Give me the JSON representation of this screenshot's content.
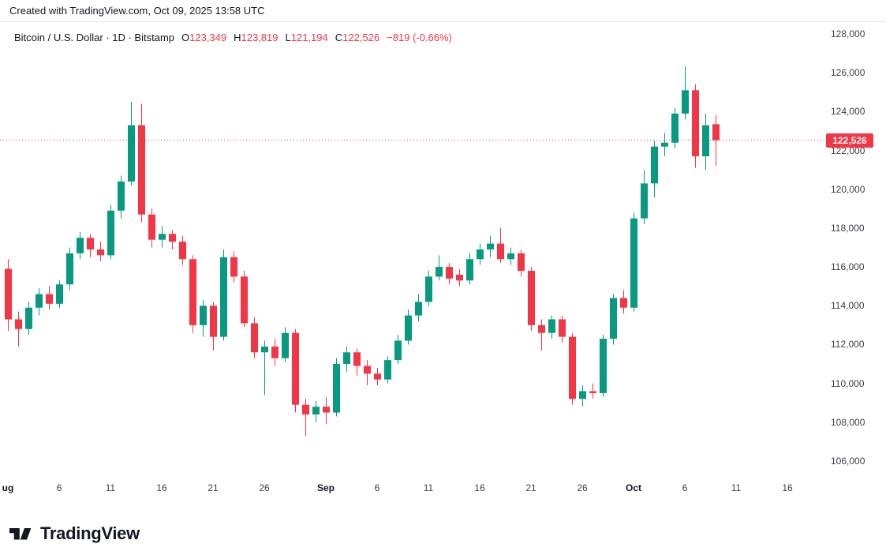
{
  "header": {
    "created_with": "Created with TradingView.com, Oct 09, 2025 13:58 UTC"
  },
  "legend": {
    "title": "Bitcoin / U.S. Dollar · 1D · Bitstamp",
    "open_label": "O",
    "open": "123,349",
    "high_label": "H",
    "high": "123,819",
    "low_label": "L",
    "low": "121,194",
    "close_label": "C",
    "close": "122,526",
    "change": "−819 (-0.66%)"
  },
  "footer": {
    "brand": "TradingView"
  },
  "chart_data": {
    "type": "candlestick",
    "title": "Bitcoin / U.S. Dollar · 1D · Bitstamp",
    "symbol": "Bitcoin / U.S. Dollar",
    "interval": "1D",
    "exchange": "Bitstamp",
    "grid": false,
    "legend_position": "top-left",
    "ylim": [
      105200,
      128600
    ],
    "current_price": 122526,
    "price_label": "122,526",
    "ohlc_last": {
      "open": 123349,
      "high": 123819,
      "low": 121194,
      "close": 122526,
      "change": -819,
      "change_pct": -0.66
    },
    "colors": {
      "up": "#089981",
      "down": "#f23645",
      "price_line": "#f23645",
      "tag_bg": "#f23645",
      "tag_text": "#ffffff"
    },
    "y_ticks": [
      128000,
      126000,
      124000,
      122000,
      120000,
      118000,
      116000,
      114000,
      112000,
      110000,
      108000,
      106000
    ],
    "x_ticks": [
      {
        "label": "ug",
        "day": 0,
        "bold": true
      },
      {
        "label": "6",
        "day": 5,
        "bold": false
      },
      {
        "label": "11",
        "day": 10,
        "bold": false
      },
      {
        "label": "16",
        "day": 15,
        "bold": false
      },
      {
        "label": "21",
        "day": 20,
        "bold": false
      },
      {
        "label": "26",
        "day": 25,
        "bold": false
      },
      {
        "label": "Sep",
        "day": 31,
        "bold": true
      },
      {
        "label": "6",
        "day": 36,
        "bold": false
      },
      {
        "label": "11",
        "day": 41,
        "bold": false
      },
      {
        "label": "16",
        "day": 46,
        "bold": false
      },
      {
        "label": "21",
        "day": 51,
        "bold": false
      },
      {
        "label": "26",
        "day": 56,
        "bold": false
      },
      {
        "label": "Oct",
        "day": 61,
        "bold": true
      },
      {
        "label": "6",
        "day": 66,
        "bold": false
      },
      {
        "label": "11",
        "day": 71,
        "bold": false
      },
      {
        "label": "16",
        "day": 76,
        "bold": false
      }
    ],
    "candles": [
      [
        "Aug 1",
        115900,
        116400,
        112700,
        113300
      ],
      [
        "Aug 2",
        113300,
        113700,
        111900,
        112800
      ],
      [
        "Aug 3",
        112800,
        114200,
        112500,
        113900
      ],
      [
        "Aug 4",
        113900,
        114900,
        113500,
        114600
      ],
      [
        "Aug 5",
        114600,
        115000,
        113800,
        114100
      ],
      [
        "Aug 6",
        114100,
        115300,
        113900,
        115100
      ],
      [
        "Aug 7",
        115100,
        117000,
        114800,
        116700
      ],
      [
        "Aug 8",
        116700,
        117800,
        116400,
        117500
      ],
      [
        "Aug 9",
        117500,
        117700,
        116500,
        116900
      ],
      [
        "Aug 10",
        116900,
        117300,
        116300,
        116600
      ],
      [
        "Aug 11",
        116600,
        119200,
        116400,
        118900
      ],
      [
        "Aug 12",
        118900,
        120700,
        118500,
        120400
      ],
      [
        "Aug 13",
        120400,
        124500,
        120200,
        123300
      ],
      [
        "Aug 14",
        123300,
        124400,
        118300,
        118700
      ],
      [
        "Aug 15",
        118700,
        119000,
        117000,
        117400
      ],
      [
        "Aug 16",
        117400,
        118100,
        117000,
        117700
      ],
      [
        "Aug 17",
        117700,
        117900,
        116900,
        117300
      ],
      [
        "Aug 18",
        117300,
        117600,
        116100,
        116400
      ],
      [
        "Aug 19",
        116400,
        116600,
        112600,
        113000
      ],
      [
        "Aug 20",
        113000,
        114300,
        112400,
        114000
      ],
      [
        "Aug 21",
        114000,
        114200,
        111700,
        112400
      ],
      [
        "Aug 22",
        112400,
        116900,
        112200,
        116500
      ],
      [
        "Aug 23",
        116500,
        116800,
        115200,
        115500
      ],
      [
        "Aug 24",
        115500,
        115800,
        112900,
        113100
      ],
      [
        "Aug 25",
        113100,
        113400,
        111300,
        111600
      ],
      [
        "Aug 26",
        111600,
        112200,
        109400,
        111900
      ],
      [
        "Aug 27",
        111900,
        112300,
        110900,
        111300
      ],
      [
        "Aug 28",
        111300,
        112900,
        111100,
        112600
      ],
      [
        "Aug 29",
        112600,
        112800,
        108500,
        108900
      ],
      [
        "Aug 30",
        108900,
        109200,
        107300,
        108400
      ],
      [
        "Aug 31",
        108400,
        109100,
        108000,
        108800
      ],
      [
        "Sep 1",
        108800,
        109300,
        107900,
        108500
      ],
      [
        "Sep 2",
        108500,
        111300,
        108300,
        111000
      ],
      [
        "Sep 3",
        111000,
        111900,
        110600,
        111600
      ],
      [
        "Sep 4",
        111600,
        111800,
        110400,
        110900
      ],
      [
        "Sep 5",
        110900,
        111200,
        109900,
        110500
      ],
      [
        "Sep 6",
        110500,
        110800,
        109900,
        110200
      ],
      [
        "Sep 7",
        110200,
        111400,
        110000,
        111200
      ],
      [
        "Sep 8",
        111200,
        112500,
        111000,
        112200
      ],
      [
        "Sep 9",
        112200,
        113800,
        112000,
        113500
      ],
      [
        "Sep 10",
        113500,
        114600,
        113200,
        114200
      ],
      [
        "Sep 11",
        114200,
        115800,
        114000,
        115500
      ],
      [
        "Sep 12",
        115500,
        116600,
        115300,
        116000
      ],
      [
        "Sep 13",
        116000,
        116200,
        115100,
        115400
      ],
      [
        "Sep 14",
        115600,
        115900,
        115000,
        115300
      ],
      [
        "Sep 15",
        115300,
        116700,
        115100,
        116400
      ],
      [
        "Sep 16",
        116400,
        117200,
        116100,
        116900
      ],
      [
        "Sep 17",
        116900,
        117600,
        116500,
        117200
      ],
      [
        "Sep 18",
        117200,
        118000,
        116200,
        116400
      ],
      [
        "Sep 19",
        116400,
        117000,
        116100,
        116700
      ],
      [
        "Sep 20",
        116700,
        116900,
        115500,
        115800
      ],
      [
        "Sep 21",
        115800,
        116000,
        112700,
        113000
      ],
      [
        "Sep 22",
        113000,
        113300,
        111700,
        112600
      ],
      [
        "Sep 23",
        112600,
        113500,
        112300,
        113300
      ],
      [
        "Sep 24",
        113300,
        113500,
        112100,
        112400
      ],
      [
        "Sep 25",
        112400,
        112600,
        108900,
        109200
      ],
      [
        "Sep 26",
        109200,
        109900,
        108800,
        109600
      ],
      [
        "Sep 27",
        109600,
        110000,
        109200,
        109500
      ],
      [
        "Sep 28",
        109500,
        112500,
        109300,
        112300
      ],
      [
        "Sep 29",
        112300,
        114600,
        112000,
        114400
      ],
      [
        "Sep 30",
        114400,
        114800,
        113600,
        113900
      ],
      [
        "Oct 1",
        113900,
        118800,
        113700,
        118500
      ],
      [
        "Oct 2",
        118500,
        121000,
        118200,
        120300
      ],
      [
        "Oct 3",
        120300,
        122500,
        119600,
        122200
      ],
      [
        "Oct 4",
        122200,
        122900,
        121700,
        122400
      ],
      [
        "Oct 5",
        122400,
        124200,
        122100,
        123900
      ],
      [
        "Oct 6",
        123900,
        126320,
        123600,
        125100
      ],
      [
        "Oct 7",
        125100,
        125400,
        121100,
        121700
      ],
      [
        "Oct 8",
        121700,
        123900,
        121000,
        123300
      ],
      [
        "Oct 9",
        123349,
        123819,
        121194,
        122526
      ]
    ]
  }
}
